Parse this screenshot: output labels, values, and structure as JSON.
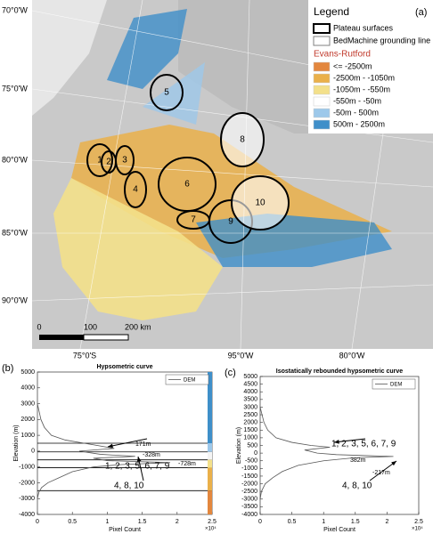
{
  "map": {
    "panel_label": "(a)",
    "legend": {
      "title": "Legend",
      "outlines": [
        {
          "label": "Plateau surfaces",
          "color": "#000000"
        },
        {
          "label": "BedMachine grounding line",
          "color": "#808080"
        }
      ],
      "subtitle": "Evans-Rutford",
      "entries": [
        {
          "label": "<= -2500m",
          "color": "#e3873e"
        },
        {
          "label": "-2500m - -1050m",
          "color": "#eab04a"
        },
        {
          "label": "-1050m - -550m",
          "color": "#f3e08a"
        },
        {
          "label": "-550m - -50m",
          "color": "#ffffff"
        },
        {
          "label": "-50m - 500m",
          "color": "#9dc8ea"
        },
        {
          "label": "500m - 2500m",
          "color": "#3f8fc9"
        }
      ]
    },
    "left_labels": [
      "70°0'W",
      "75°0'W",
      "80°0'W",
      "85°0'W",
      "90°0'W"
    ],
    "bottom_labels": [
      "75°0'S",
      "95°0'W",
      "80°0'W"
    ],
    "scale_labels": [
      "0",
      "100",
      "200 km"
    ],
    "plateaus": [
      "1",
      "2",
      "3",
      "4",
      "5",
      "6",
      "7",
      "8",
      "9",
      "10"
    ]
  },
  "chart_data": [
    {
      "type": "line",
      "panel_label": "(b)",
      "title": "Hypsometric curve",
      "x_label": "Pixel Count",
      "y_label": "Elevation (m)",
      "x_multiplier": "×10⁴",
      "xlim": [
        0,
        25000
      ],
      "ylim": [
        -4000,
        5000
      ],
      "xticks": [
        0,
        {
          "value": 5000,
          "label": "0.5"
        },
        {
          "value": 10000,
          "label": "1"
        },
        {
          "value": 15000,
          "label": "1.5"
        },
        {
          "value": 20000,
          "label": "2"
        },
        {
          "value": 25000,
          "label": "2.5"
        }
      ],
      "yticks": [
        -4000,
        -3000,
        -2000,
        -1000,
        0,
        1000,
        2000,
        3000,
        4000,
        5000
      ],
      "hlines": [
        500,
        -50,
        -550,
        -1050,
        -2500
      ],
      "series": [
        {
          "name": "DEM",
          "color": "#555555",
          "x": [
            0,
            200,
            500,
            1000,
            2000,
            4000,
            8000,
            11000,
            6000,
            9000,
            14000,
            8000,
            10000,
            19000,
            12000,
            8000,
            5000,
            3000,
            1500,
            600,
            200,
            0
          ],
          "values": [
            3000,
            2600,
            2000,
            1500,
            1000,
            700,
            400,
            171,
            0,
            -200,
            -328,
            -450,
            -600,
            -728,
            -850,
            -1000,
            -1300,
            -1700,
            -2000,
            -2300,
            -2600,
            -3000
          ]
        }
      ],
      "annotations": [
        "1, 2, 3, 5, 6, 7, 9",
        "171m",
        "-328m",
        "-728m",
        "4, 8, 10"
      ]
    },
    {
      "type": "line",
      "panel_label": "(c)",
      "title": "Isostatically rebounded hypsometric curve",
      "x_label": "Pixel Count",
      "y_label": "Elevation (m)",
      "x_multiplier": "×10⁴",
      "xlim": [
        0,
        25000
      ],
      "ylim": [
        -4000,
        5000
      ],
      "xticks": [
        0,
        {
          "value": 5000,
          "label": "0.5"
        },
        {
          "value": 10000,
          "label": "1"
        },
        {
          "value": 15000,
          "label": "1.5"
        },
        {
          "value": 20000,
          "label": "2"
        },
        {
          "value": 25000,
          "label": "2.5"
        }
      ],
      "yticks": [
        -4000,
        -3500,
        -3000,
        -2500,
        -2000,
        -1500,
        -1000,
        -500,
        0,
        500,
        1000,
        1500,
        2000,
        2500,
        3000,
        3500,
        4000,
        4500,
        5000
      ],
      "hlines": [],
      "series": [
        {
          "name": "DEM",
          "color": "#555555",
          "x": [
            0,
            300,
            600,
            1200,
            2500,
            5000,
            8000,
            11000,
            7000,
            9000,
            12000,
            21000,
            15000,
            10000,
            6000,
            3500,
            2000,
            800,
            200,
            0
          ],
          "values": [
            3000,
            2500,
            2000,
            1500,
            1000,
            700,
            500,
            382,
            200,
            0,
            -100,
            -217,
            -300,
            -500,
            -800,
            -1200,
            -1600,
            -2000,
            -2500,
            -3000
          ]
        }
      ],
      "annotations": [
        "1, 2, 3, 5, 6, 7, 9",
        "382m",
        "-217m",
        "4, 8, 10"
      ]
    }
  ]
}
